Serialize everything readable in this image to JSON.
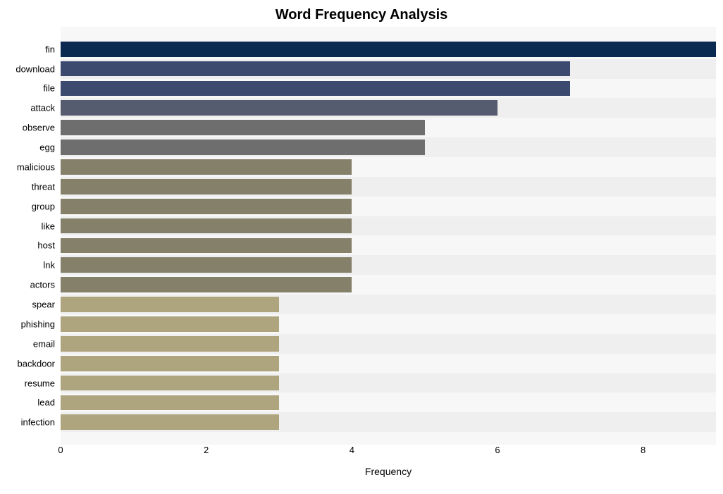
{
  "chart": {
    "type": "bar-horizontal",
    "title": "Word Frequency Analysis",
    "title_fontsize": 20,
    "title_fontweight": "bold",
    "xlabel": "Frequency",
    "xlabel_fontsize": 14,
    "background_color": "#ffffff",
    "plot_background_color": "#f7f7f7",
    "alt_row_color": "#efefef",
    "xlim": [
      0,
      9
    ],
    "xticks": [
      0,
      2,
      4,
      6,
      8
    ],
    "ytick_fontsize": 13,
    "xtick_fontsize": 13,
    "bar_height_ratio": 0.78,
    "categories": [
      "fin",
      "download",
      "file",
      "attack",
      "observe",
      "egg",
      "malicious",
      "threat",
      "group",
      "like",
      "host",
      "lnk",
      "actors",
      "spear",
      "phishing",
      "email",
      "backdoor",
      "resume",
      "lead",
      "infection"
    ],
    "values": [
      9,
      7,
      7,
      6,
      5,
      5,
      4,
      4,
      4,
      4,
      4,
      4,
      4,
      3,
      3,
      3,
      3,
      3,
      3,
      3
    ],
    "bar_colors": [
      "#0a2a52",
      "#3c4a70",
      "#3c4a70",
      "#565c6f",
      "#6e6e6e",
      "#6e6e6e",
      "#85806a",
      "#85806a",
      "#85806a",
      "#85806a",
      "#85806a",
      "#85806a",
      "#85806a",
      "#aea57e",
      "#aea57e",
      "#aea57e",
      "#aea57e",
      "#aea57e",
      "#aea57e",
      "#aea57e"
    ]
  }
}
